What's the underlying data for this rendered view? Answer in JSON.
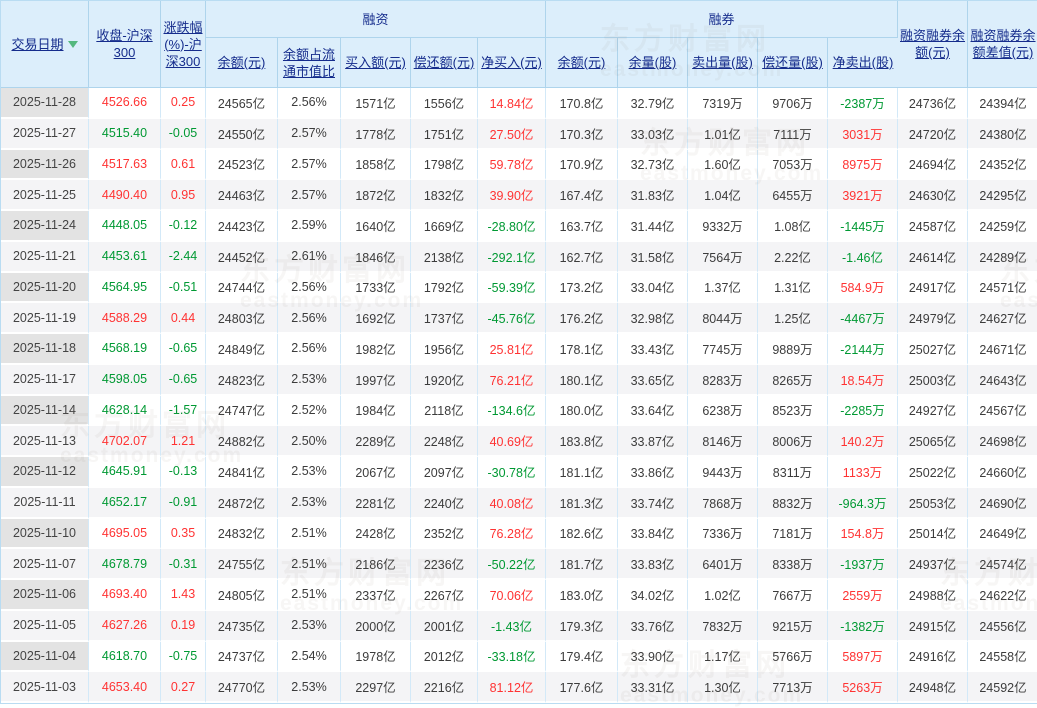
{
  "colors": {
    "positive": "#ff3333",
    "negative": "#009933",
    "header_text": "#152c8c",
    "header_bg": "#dceefb",
    "header_border": "#aed4ec",
    "body_border": "#d3e9f8",
    "date_column_bg": "#e3e3e3",
    "alt_row_bg": "#f4f4f6",
    "sort_arrow": "#54b87e"
  },
  "watermark": {
    "brand": "东方财富网",
    "domain": "eastmoney.com"
  },
  "table": {
    "groups": [
      {
        "label": "融资"
      },
      {
        "label": "融券"
      }
    ],
    "columns": [
      {
        "label": "交易日期",
        "sort_indicator": "down"
      },
      {
        "label": "收盘-沪深300"
      },
      {
        "label": "涨跌幅(%)-沪深300"
      },
      {
        "label": "余额(元)"
      },
      {
        "label": "余额占流通市值比"
      },
      {
        "label": "买入额(元)"
      },
      {
        "label": "偿还额(元)"
      },
      {
        "label": "净买入(元)"
      },
      {
        "label": "余额(元)"
      },
      {
        "label": "余量(股)"
      },
      {
        "label": "卖出量(股)"
      },
      {
        "label": "偿还量(股)"
      },
      {
        "label": "净卖出(股)"
      },
      {
        "label": "融资融券余额(元)"
      },
      {
        "label": "融资融券余额差值(元)"
      }
    ],
    "rows": [
      [
        "2025-11-28",
        "4526.66",
        "0.25",
        "24565亿",
        "2.56%",
        "1571亿",
        "1556亿",
        "14.84亿",
        "170.8亿",
        "32.79亿",
        "7319万",
        "9706万",
        "-2387万",
        "24736亿",
        "24394亿"
      ],
      [
        "2025-11-27",
        "4515.40",
        "-0.05",
        "24550亿",
        "2.57%",
        "1778亿",
        "1751亿",
        "27.50亿",
        "170.3亿",
        "33.03亿",
        "1.01亿",
        "7111万",
        "3031万",
        "24720亿",
        "24380亿"
      ],
      [
        "2025-11-26",
        "4517.63",
        "0.61",
        "24523亿",
        "2.57%",
        "1858亿",
        "1798亿",
        "59.78亿",
        "170.9亿",
        "32.73亿",
        "1.60亿",
        "7053万",
        "8975万",
        "24694亿",
        "24352亿"
      ],
      [
        "2025-11-25",
        "4490.40",
        "0.95",
        "24463亿",
        "2.57%",
        "1872亿",
        "1832亿",
        "39.90亿",
        "167.4亿",
        "31.83亿",
        "1.04亿",
        "6455万",
        "3921万",
        "24630亿",
        "24295亿"
      ],
      [
        "2025-11-24",
        "4448.05",
        "-0.12",
        "24423亿",
        "2.59%",
        "1640亿",
        "1669亿",
        "-28.80亿",
        "163.7亿",
        "31.44亿",
        "9332万",
        "1.08亿",
        "-1445万",
        "24587亿",
        "24259亿"
      ],
      [
        "2025-11-21",
        "4453.61",
        "-2.44",
        "24452亿",
        "2.61%",
        "1846亿",
        "2138亿",
        "-292.1亿",
        "162.7亿",
        "31.58亿",
        "7564万",
        "2.22亿",
        "-1.46亿",
        "24614亿",
        "24289亿"
      ],
      [
        "2025-11-20",
        "4564.95",
        "-0.51",
        "24744亿",
        "2.56%",
        "1733亿",
        "1792亿",
        "-59.39亿",
        "173.2亿",
        "33.04亿",
        "1.37亿",
        "1.31亿",
        "584.9万",
        "24917亿",
        "24571亿"
      ],
      [
        "2025-11-19",
        "4588.29",
        "0.44",
        "24803亿",
        "2.56%",
        "1692亿",
        "1737亿",
        "-45.76亿",
        "176.2亿",
        "32.98亿",
        "8044万",
        "1.25亿",
        "-4467万",
        "24979亿",
        "24627亿"
      ],
      [
        "2025-11-18",
        "4568.19",
        "-0.65",
        "24849亿",
        "2.56%",
        "1982亿",
        "1956亿",
        "25.81亿",
        "178.1亿",
        "33.43亿",
        "7745万",
        "9889万",
        "-2144万",
        "25027亿",
        "24671亿"
      ],
      [
        "2025-11-17",
        "4598.05",
        "-0.65",
        "24823亿",
        "2.53%",
        "1997亿",
        "1920亿",
        "76.21亿",
        "180.1亿",
        "33.65亿",
        "8283万",
        "8265万",
        "18.54万",
        "25003亿",
        "24643亿"
      ],
      [
        "2025-11-14",
        "4628.14",
        "-1.57",
        "24747亿",
        "2.52%",
        "1984亿",
        "2118亿",
        "-134.6亿",
        "180.0亿",
        "33.64亿",
        "6238万",
        "8523万",
        "-2285万",
        "24927亿",
        "24567亿"
      ],
      [
        "2025-11-13",
        "4702.07",
        "1.21",
        "24882亿",
        "2.50%",
        "2289亿",
        "2248亿",
        "40.69亿",
        "183.8亿",
        "33.87亿",
        "8146万",
        "8006万",
        "140.2万",
        "25065亿",
        "24698亿"
      ],
      [
        "2025-11-12",
        "4645.91",
        "-0.13",
        "24841亿",
        "2.53%",
        "2067亿",
        "2097亿",
        "-30.78亿",
        "181.1亿",
        "33.86亿",
        "9443万",
        "8311万",
        "1133万",
        "25022亿",
        "24660亿"
      ],
      [
        "2025-11-11",
        "4652.17",
        "-0.91",
        "24872亿",
        "2.53%",
        "2281亿",
        "2240亿",
        "40.08亿",
        "181.3亿",
        "33.74亿",
        "7868万",
        "8832万",
        "-964.3万",
        "25053亿",
        "24690亿"
      ],
      [
        "2025-11-10",
        "4695.05",
        "0.35",
        "24832亿",
        "2.51%",
        "2428亿",
        "2352亿",
        "76.28亿",
        "182.6亿",
        "33.84亿",
        "7336万",
        "7181万",
        "154.8万",
        "25014亿",
        "24649亿"
      ],
      [
        "2025-11-07",
        "4678.79",
        "-0.31",
        "24755亿",
        "2.51%",
        "2186亿",
        "2236亿",
        "-50.22亿",
        "181.7亿",
        "33.83亿",
        "6401万",
        "8338万",
        "-1937万",
        "24937亿",
        "24574亿"
      ],
      [
        "2025-11-06",
        "4693.40",
        "1.43",
        "24805亿",
        "2.51%",
        "2337亿",
        "2267亿",
        "70.06亿",
        "183.0亿",
        "34.02亿",
        "1.02亿",
        "7667万",
        "2559万",
        "24988亿",
        "24622亿"
      ],
      [
        "2025-11-05",
        "4627.26",
        "0.19",
        "24735亿",
        "2.53%",
        "2000亿",
        "2001亿",
        "-1.43亿",
        "179.3亿",
        "33.76亿",
        "7832万",
        "9215万",
        "-1382万",
        "24915亿",
        "24556亿"
      ],
      [
        "2025-11-04",
        "4618.70",
        "-0.75",
        "24737亿",
        "2.54%",
        "1978亿",
        "2012亿",
        "-33.18亿",
        "179.4亿",
        "33.90亿",
        "1.17亿",
        "5766万",
        "5897万",
        "24916亿",
        "24558亿"
      ],
      [
        "2025-11-03",
        "4653.40",
        "0.27",
        "24770亿",
        "2.53%",
        "2297亿",
        "2216亿",
        "81.12亿",
        "177.6亿",
        "33.31亿",
        "1.30亿",
        "7713万",
        "5263万",
        "24948亿",
        "24592亿"
      ]
    ]
  }
}
